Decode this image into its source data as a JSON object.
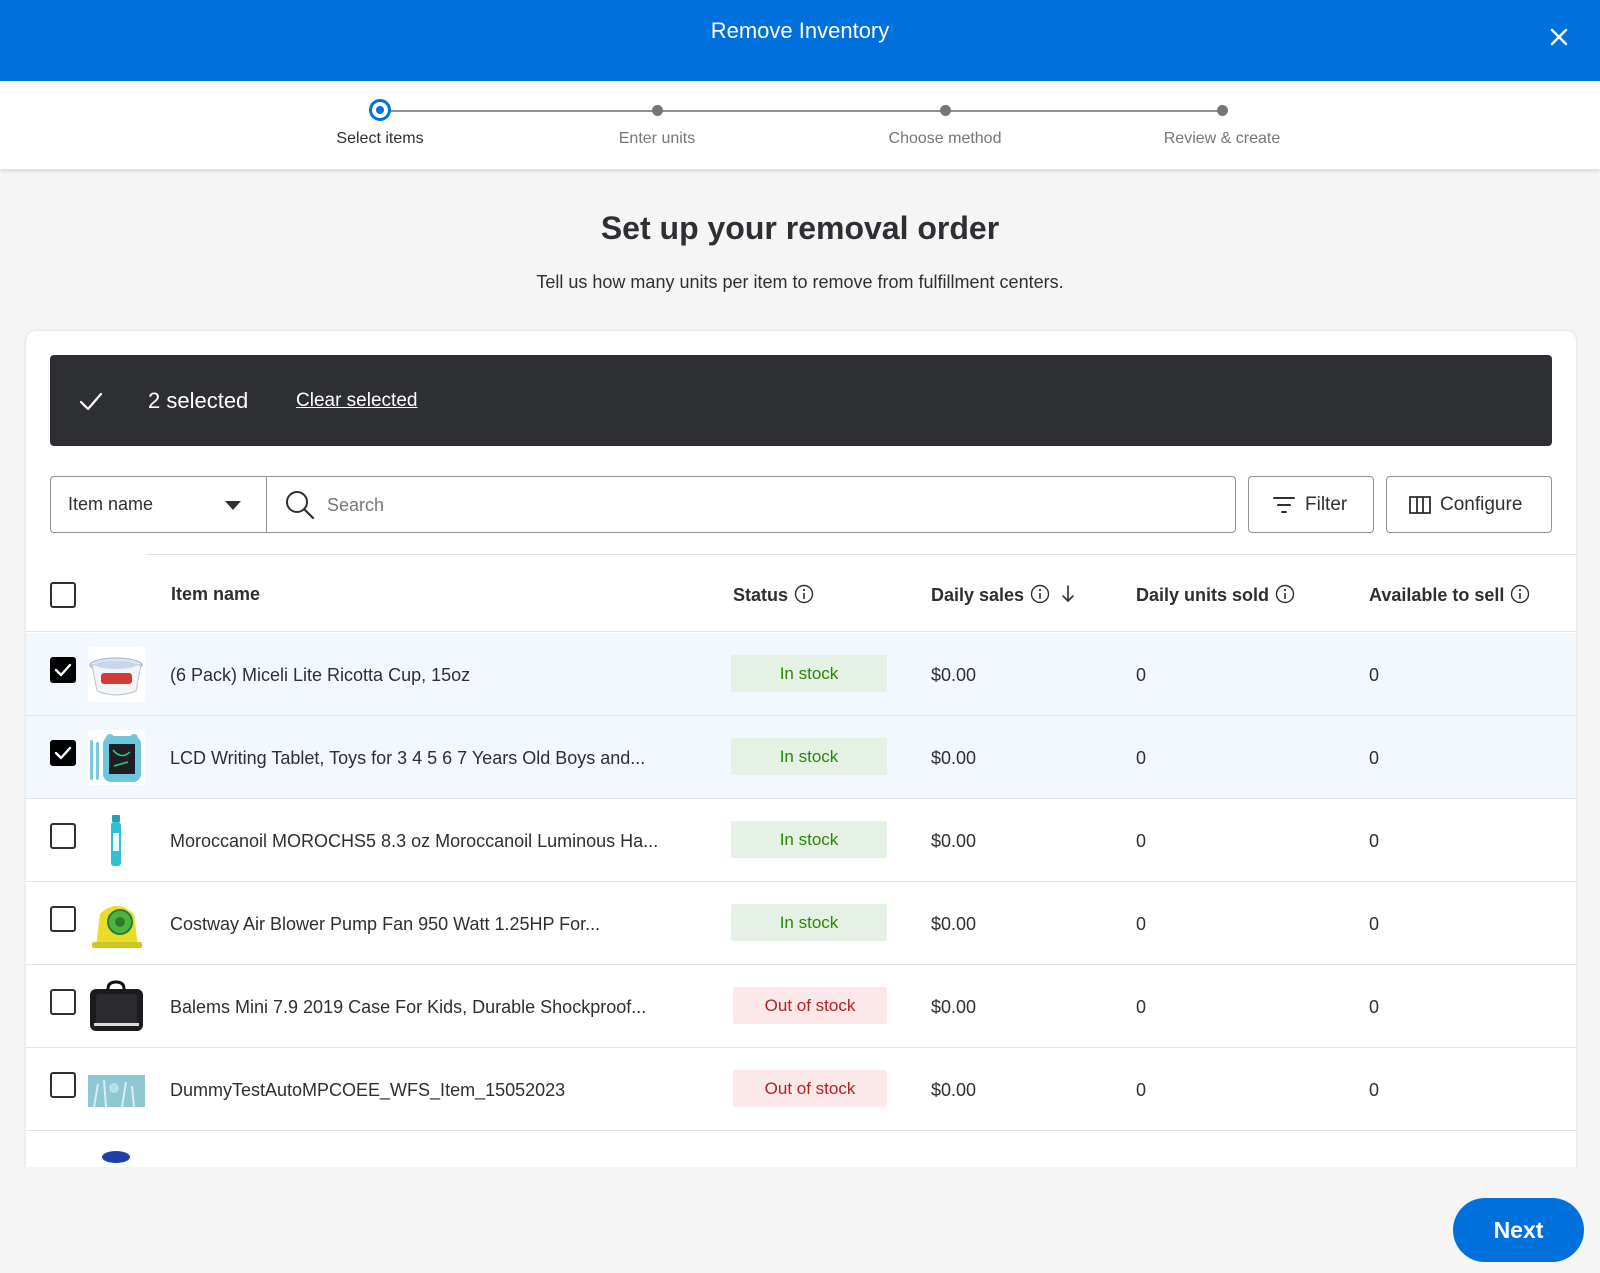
{
  "modal": {
    "title": "Remove Inventory"
  },
  "stepper": {
    "steps": [
      {
        "label": "Select items",
        "active": true
      },
      {
        "label": "Enter units",
        "active": false
      },
      {
        "label": "Choose method",
        "active": false
      },
      {
        "label": "Review & create",
        "active": false
      }
    ]
  },
  "page": {
    "heading": "Set up your removal order",
    "subheading": "Tell us how many units per item to remove from fulfillment centers."
  },
  "selection": {
    "count_label": "2 selected",
    "clear_label": "Clear selected"
  },
  "toolbar": {
    "search_field": "Item name",
    "search_placeholder": "Search",
    "filter_label": "Filter",
    "configure_label": "Configure"
  },
  "table": {
    "columns": {
      "item_name": "Item name",
      "status": "Status",
      "daily_sales": "Daily sales",
      "daily_units_sold": "Daily units sold",
      "available_to_sell": "Available to sell"
    },
    "rows": [
      {
        "name": "(6 Pack) Miceli Lite Ricotta Cup, 15oz",
        "status": "In stock",
        "sales": "$0.00",
        "units": "0",
        "available": "0",
        "checked": true,
        "thumb": "ricotta"
      },
      {
        "name": "LCD Writing Tablet, Toys for 3 4 5 6 7 Years Old Boys and...",
        "status": "In stock",
        "sales": "$0.00",
        "units": "0",
        "available": "0",
        "checked": true,
        "thumb": "tablet"
      },
      {
        "name": "Moroccanoil MOROCHS5 8.3 oz Moroccanoil Luminous Ha...",
        "status": "In stock",
        "sales": "$0.00",
        "units": "0",
        "available": "0",
        "checked": false,
        "thumb": "spray"
      },
      {
        "name": "Costway Air Blower Pump Fan 950 Watt 1.25HP For...",
        "status": "In stock",
        "sales": "$0.00",
        "units": "0",
        "available": "0",
        "checked": false,
        "thumb": "blower"
      },
      {
        "name": "Balems Mini 7.9 2019 Case For Kids, Durable Shockproof...",
        "status": "Out of stock",
        "sales": "$0.00",
        "units": "0",
        "available": "0",
        "checked": false,
        "thumb": "case"
      },
      {
        "name": "DummyTestAutoMPCOEE_WFS_Item_15052023",
        "status": "Out of stock",
        "sales": "$0.00",
        "units": "0",
        "available": "0",
        "checked": false,
        "thumb": "dummy"
      }
    ]
  },
  "footer": {
    "next_label": "Next"
  },
  "colors": {
    "brand_blue": "#0071dc",
    "in_stock_green": "#2a8703",
    "out_of_stock_red": "#b51f28",
    "dark_bar": "#2e2f32"
  }
}
